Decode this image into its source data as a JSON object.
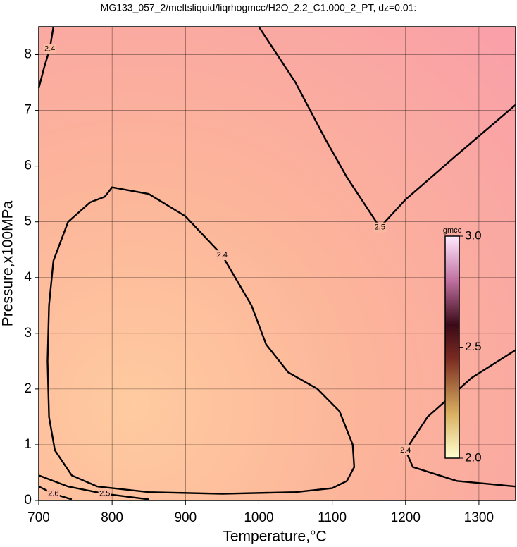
{
  "chart_data": {
    "type": "contour",
    "title": "MG133_057_2/meltsliquid/liqrhogmcc/H2O_2.2_C1.000_2_PT, dz=0.01:",
    "x_label": "Temperature,°C",
    "y_label": "Pressure,x100MPa",
    "xlim": [
      700,
      1350
    ],
    "ylim": [
      0,
      8.5
    ],
    "xticks": [
      700,
      800,
      900,
      1000,
      1100,
      1200,
      1300
    ],
    "yticks": [
      0,
      1,
      2,
      3,
      4,
      5,
      6,
      7,
      8
    ],
    "grid": true,
    "contours": [
      {
        "level": 2.4,
        "x": [
          780,
          745,
          722,
          714,
          712,
          714,
          720,
          740,
          770,
          790,
          800,
          850,
          900,
          950,
          990,
          1010,
          1040,
          1080,
          1110,
          1128,
          1130,
          1120,
          1100,
          1050,
          950,
          850,
          780
        ],
        "y": [
          0.25,
          0.45,
          0.9,
          1.5,
          2.5,
          3.5,
          4.3,
          5.0,
          5.35,
          5.45,
          5.62,
          5.5,
          5.1,
          4.4,
          3.5,
          2.8,
          2.3,
          2.0,
          1.6,
          1.0,
          0.6,
          0.35,
          0.22,
          0.15,
          0.12,
          0.15,
          0.25
        ]
      },
      {
        "level": 2.5,
        "x": [
          1000,
          1050,
          1090,
          1120,
          1165,
          1200,
          1270,
          1350
        ],
        "y": [
          8.5,
          7.5,
          6.5,
          5.8,
          4.9,
          5.4,
          6.2,
          7.1
        ]
      },
      {
        "level": 2.4,
        "x": [
          1350,
          1290,
          1230,
          1200,
          1210,
          1270,
          1350
        ],
        "y": [
          2.7,
          2.2,
          1.5,
          0.9,
          0.6,
          0.35,
          0.25
        ]
      },
      {
        "level": 2.4,
        "x": [
          700,
          708,
          715,
          720
        ],
        "y": [
          7.4,
          7.8,
          8.1,
          8.5
        ]
      },
      {
        "level": 2.5,
        "x": [
          700,
          740,
          790,
          850
        ],
        "y": [
          0.45,
          0.25,
          0.12,
          0.02
        ]
      },
      {
        "level": 2.6,
        "x": [
          700,
          720,
          745
        ],
        "y": [
          0.25,
          0.12,
          0.02
        ]
      }
    ],
    "colorbar": {
      "label": "gmcc",
      "clim": [
        2.0,
        3.0
      ],
      "ticks": [
        {
          "value": 2.0,
          "label": "2.0"
        },
        {
          "value": 2.5,
          "label": "2.5"
        },
        {
          "value": 3.0,
          "label": "3.0"
        }
      ]
    }
  }
}
